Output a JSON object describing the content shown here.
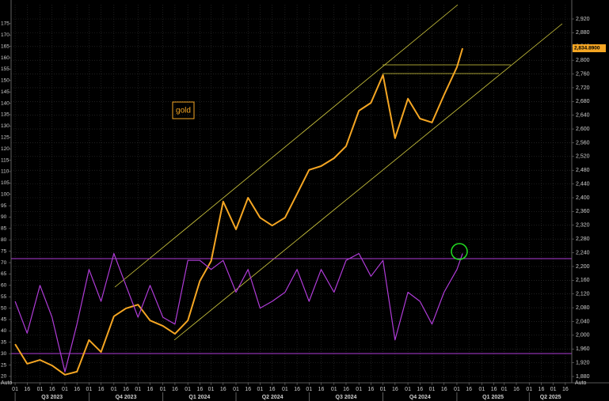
{
  "chart_data": {
    "type": "line",
    "x": [
      "2023-07-01",
      "2023-07-16",
      "2023-08-01",
      "2023-08-16",
      "2023-09-01",
      "2023-09-16",
      "2023-10-01",
      "2023-10-16",
      "2023-11-01",
      "2023-11-16",
      "2023-12-01",
      "2023-12-16",
      "2024-01-01",
      "2024-01-16",
      "2024-02-01",
      "2024-02-16",
      "2024-03-01",
      "2024-03-16",
      "2024-04-01",
      "2024-04-16",
      "2024-05-01",
      "2024-05-16",
      "2024-06-01",
      "2024-06-16",
      "2024-07-01",
      "2024-07-16",
      "2024-08-01",
      "2024-08-16",
      "2024-09-01",
      "2024-09-16",
      "2024-10-01",
      "2024-10-16",
      "2024-11-01",
      "2024-11-16",
      "2024-12-01",
      "2024-12-16",
      "2025-01-01",
      "2025-01-08"
    ],
    "series": [
      {
        "name": "gold",
        "color": "#f5a623",
        "axis": "y2",
        "values": [
          1974,
          1917,
          1928,
          1912,
          1885,
          1894,
          1986,
          1951,
          2055,
          2078,
          2089,
          2043,
          2027,
          2004,
          2043,
          2158,
          2216,
          2389,
          2308,
          2400,
          2342,
          2319,
          2342,
          2411,
          2481,
          2492,
          2515,
          2550,
          2653,
          2676,
          2757,
          2573,
          2688,
          2630,
          2619,
          2699,
          2780,
          2834.89
        ]
      },
      {
        "color": "#b03cd8",
        "values": [
          53,
          39,
          60,
          46,
          22,
          43,
          67,
          53,
          74,
          60,
          46,
          60,
          46,
          43,
          71,
          71,
          67,
          71,
          57,
          67,
          50,
          53,
          57,
          67,
          53,
          67,
          57,
          71,
          74,
          64,
          71,
          36,
          57,
          53,
          43,
          57,
          67,
          74
        ]
      }
    ],
    "last_value_label": "2,834.8900",
    "axis_buttons": [
      "Auto",
      "Auto"
    ],
    "xlim": [
      "2023-06-26",
      "2025-05-24"
    ],
    "xticks": [
      {
        "value": "2023-07-01",
        "label": "01"
      },
      {
        "value": "2023-07-16",
        "label": "16"
      },
      {
        "value": "2023-08-01",
        "label": "01"
      },
      {
        "value": "2023-08-16",
        "label": "16"
      },
      {
        "value": "2023-09-01",
        "label": "01"
      },
      {
        "value": "2023-09-16",
        "label": "16"
      },
      {
        "value": "2023-10-01",
        "label": "01"
      },
      {
        "value": "2023-10-16",
        "label": "16"
      },
      {
        "value": "2023-11-01",
        "label": "01"
      },
      {
        "value": "2023-11-16",
        "label": "16"
      },
      {
        "value": "2023-12-01",
        "label": "01"
      },
      {
        "value": "2023-12-16",
        "label": "16"
      },
      {
        "value": "2024-01-01",
        "label": "01"
      },
      {
        "value": "2024-01-16",
        "label": "16"
      },
      {
        "value": "2024-02-01",
        "label": "01"
      },
      {
        "value": "2024-02-16",
        "label": "16"
      },
      {
        "value": "2024-03-01",
        "label": "01"
      },
      {
        "value": "2024-03-16",
        "label": "16"
      },
      {
        "value": "2024-04-01",
        "label": "01"
      },
      {
        "value": "2024-04-16",
        "label": "16"
      },
      {
        "value": "2024-05-01",
        "label": "01"
      },
      {
        "value": "2024-05-16",
        "label": "16"
      },
      {
        "value": "2024-06-01",
        "label": "01"
      },
      {
        "value": "2024-06-16",
        "label": "16"
      },
      {
        "value": "2024-07-01",
        "label": "01"
      },
      {
        "value": "2024-07-16",
        "label": "16"
      },
      {
        "value": "2024-08-01",
        "label": "01"
      },
      {
        "value": "2024-08-16",
        "label": "16"
      },
      {
        "value": "2024-09-01",
        "label": "01"
      },
      {
        "value": "2024-09-16",
        "label": "16"
      },
      {
        "value": "2024-10-01",
        "label": "01"
      },
      {
        "value": "2024-10-16",
        "label": "16"
      },
      {
        "value": "2024-11-01",
        "label": "01"
      },
      {
        "value": "2024-11-16",
        "label": "16"
      },
      {
        "value": "2024-12-01",
        "label": "01"
      },
      {
        "value": "2024-12-16",
        "label": "16"
      },
      {
        "value": "2025-01-01",
        "label": "01"
      },
      {
        "value": "2025-01-16",
        "label": "16"
      },
      {
        "value": "2025-02-01",
        "label": "01"
      },
      {
        "value": "2025-02-16",
        "label": "16"
      },
      {
        "value": "2025-03-01",
        "label": "01"
      },
      {
        "value": "2025-03-16",
        "label": "16"
      },
      {
        "value": "2025-04-01",
        "label": "01"
      },
      {
        "value": "2025-04-16",
        "label": "16"
      },
      {
        "value": "2025-05-01",
        "label": "01"
      },
      {
        "value": "2025-05-16",
        "label": "16"
      }
    ],
    "quarters": [
      {
        "value": "2023-07-01",
        "label": "Q3 2023"
      },
      {
        "value": "2023-10-01",
        "label": "Q4 2023"
      },
      {
        "value": "2024-01-01",
        "label": "Q1 2024"
      },
      {
        "value": "2024-04-01",
        "label": "Q2 2024"
      },
      {
        "value": "2024-07-01",
        "label": "Q3 2024"
      },
      {
        "value": "2024-10-01",
        "label": "Q4 2024"
      },
      {
        "value": "2025-01-01",
        "label": "Q1 2025"
      },
      {
        "value": "2025-04-01",
        "label": "Q2 2025"
      }
    ],
    "ylim": [
      17.2,
      183.3
    ],
    "yticks": [
      20,
      25,
      30,
      35,
      40,
      45,
      50,
      55,
      60,
      65,
      70,
      75,
      80,
      85,
      90,
      95,
      100,
      105,
      110,
      115,
      120,
      125,
      130,
      135,
      140,
      145,
      150,
      155,
      160,
      165,
      170,
      175
    ],
    "y2lim": [
      1861.6,
      2961.4
    ],
    "y2ticks": [
      {
        "value": 1880,
        "label": "1,880"
      },
      {
        "value": 1920,
        "label": "1,920"
      },
      {
        "value": 1960,
        "label": "1,960"
      },
      {
        "value": 2000,
        "label": "2,000"
      },
      {
        "value": 2040,
        "label": "2,040"
      },
      {
        "value": 2080,
        "label": "2,080"
      },
      {
        "value": 2120,
        "label": "2,120"
      },
      {
        "value": 2160,
        "label": "2,160"
      },
      {
        "value": 2200,
        "label": "2,200"
      },
      {
        "value": 2240,
        "label": "2,240"
      },
      {
        "value": 2280,
        "label": "2,280"
      },
      {
        "value": 2320,
        "label": "2,320"
      },
      {
        "value": 2360,
        "label": "2,360"
      },
      {
        "value": 2400,
        "label": "2,400"
      },
      {
        "value": 2440,
        "label": "2,440"
      },
      {
        "value": 2480,
        "label": "2,480"
      },
      {
        "value": 2520,
        "label": "2,520"
      },
      {
        "value": 2560,
        "label": "2,560"
      },
      {
        "value": 2600,
        "label": "2,600"
      },
      {
        "value": 2640,
        "label": "2,640"
      },
      {
        "value": 2680,
        "label": "2,680"
      },
      {
        "value": 2720,
        "label": "2,720"
      },
      {
        "value": 2760,
        "label": "2,760"
      },
      {
        "value": 2800,
        "label": "2,800"
      },
      {
        "value": 2840,
        "label": "2,840"
      },
      {
        "value": 2880,
        "label": "2,880"
      },
      {
        "value": 2920,
        "label": "2,920"
      }
    ],
    "grid": true
  }
}
